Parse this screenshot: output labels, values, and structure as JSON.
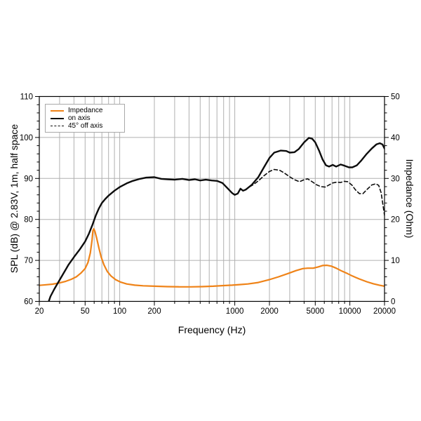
{
  "colors": {
    "background": "#ffffff",
    "grid": "#b0b0b0",
    "axis": "#000000",
    "impedance_orange": "#ef8318",
    "curve_black": "#0d0d0d",
    "legend_border": "#a9a9a9"
  },
  "axes": {
    "x": {
      "label": "Frequency (Hz)",
      "scale": "log",
      "range": [
        20,
        20000
      ],
      "major_ticks": [
        20,
        50,
        100,
        200,
        1000,
        2000,
        5000,
        10000,
        20000
      ],
      "major_tick_labels": [
        "20",
        "50",
        "100",
        "200",
        "1000",
        "2000",
        "5000",
        "10000",
        "20000"
      ],
      "minor_ticks": [
        30,
        40,
        60,
        70,
        80,
        90,
        300,
        400,
        500,
        600,
        700,
        800,
        900,
        3000,
        4000,
        6000,
        7000,
        8000,
        9000
      ],
      "grid_values": [
        30,
        40,
        50,
        60,
        70,
        80,
        90,
        100,
        200,
        300,
        400,
        500,
        600,
        700,
        800,
        900,
        1000,
        2000,
        3000,
        4000,
        5000,
        6000,
        7000,
        8000,
        9000,
        10000
      ]
    },
    "y_left": {
      "label": "SPL (dB) @ 2.83V, 1m, half space",
      "range": [
        60,
        110
      ],
      "major_ticks": [
        60,
        70,
        80,
        90,
        100,
        110
      ],
      "minor_step": 2,
      "grid_values": [
        70,
        80,
        90,
        100
      ]
    },
    "y_right": {
      "label": "Impedance (Ohm)",
      "range": [
        0,
        50
      ],
      "major_ticks": [
        0,
        10,
        20,
        30,
        40,
        50
      ],
      "minor_step": 2
    }
  },
  "legend": {
    "items": [
      {
        "label": "Impedance",
        "color": "#ef8318",
        "style": "solid"
      },
      {
        "label": "on axis",
        "color": "#0d0d0d",
        "style": "solid"
      },
      {
        "label": "45° off axis",
        "color": "#0d0d0d",
        "style": "dashed"
      }
    ]
  },
  "chart_data": {
    "type": "line",
    "title": "",
    "xlabel": "Frequency (Hz)",
    "ylabel_left": "SPL (dB) @ 2.83V, 1m, half space",
    "ylabel_right": "Impedance (Ohm)",
    "x_range": [
      20,
      20000
    ],
    "y_left_range": [
      60,
      110
    ],
    "y_right_range": [
      0,
      50
    ],
    "grid": true,
    "legend_position": "top-left",
    "series": [
      {
        "name": "Impedance",
        "axis": "right",
        "unit": "Ohm",
        "color": "#ef8318",
        "style": "solid",
        "points": [
          [
            20,
            3.9
          ],
          [
            23,
            4.05
          ],
          [
            26,
            4.2
          ],
          [
            30,
            4.5
          ],
          [
            34,
            4.9
          ],
          [
            38,
            5.4
          ],
          [
            42,
            6.0
          ],
          [
            46,
            6.9
          ],
          [
            50,
            8.0
          ],
          [
            53,
            9.5
          ],
          [
            55.5,
            11.8
          ],
          [
            57.5,
            15.0
          ],
          [
            58.5,
            17.2
          ],
          [
            59.5,
            17.7
          ],
          [
            61,
            17.0
          ],
          [
            63,
            15.5
          ],
          [
            66,
            13.0
          ],
          [
            69,
            10.8
          ],
          [
            73,
            8.9
          ],
          [
            78,
            7.3
          ],
          [
            84,
            6.2
          ],
          [
            92,
            5.3
          ],
          [
            102,
            4.7
          ],
          [
            115,
            4.25
          ],
          [
            135,
            3.95
          ],
          [
            160,
            3.8
          ],
          [
            200,
            3.7
          ],
          [
            260,
            3.6
          ],
          [
            330,
            3.55
          ],
          [
            420,
            3.55
          ],
          [
            520,
            3.6
          ],
          [
            650,
            3.7
          ],
          [
            800,
            3.85
          ],
          [
            950,
            3.95
          ],
          [
            1100,
            4.1
          ],
          [
            1300,
            4.25
          ],
          [
            1600,
            4.6
          ],
          [
            2000,
            5.3
          ],
          [
            2400,
            6.0
          ],
          [
            2900,
            6.8
          ],
          [
            3400,
            7.5
          ],
          [
            3900,
            8.0
          ],
          [
            4300,
            8.1
          ],
          [
            4800,
            8.1
          ],
          [
            5300,
            8.4
          ],
          [
            5800,
            8.75
          ],
          [
            6300,
            8.8
          ],
          [
            6900,
            8.6
          ],
          [
            7600,
            8.1
          ],
          [
            8500,
            7.4
          ],
          [
            9500,
            6.8
          ],
          [
            10500,
            6.2
          ],
          [
            12000,
            5.5
          ],
          [
            14000,
            4.8
          ],
          [
            16000,
            4.3
          ],
          [
            18000,
            3.95
          ],
          [
            20000,
            3.7
          ]
        ]
      },
      {
        "name": "on axis",
        "axis": "left",
        "unit": "dB",
        "color": "#0d0d0d",
        "style": "solid",
        "points": [
          [
            23.5,
            59.0
          ],
          [
            25,
            61.2
          ],
          [
            27,
            63.0
          ],
          [
            30,
            65.2
          ],
          [
            33,
            67.2
          ],
          [
            36,
            69.0
          ],
          [
            40,
            70.8
          ],
          [
            45,
            72.7
          ],
          [
            50,
            74.6
          ],
          [
            54,
            76.5
          ],
          [
            58,
            78.7
          ],
          [
            62,
            81.0
          ],
          [
            66,
            82.7
          ],
          [
            70,
            84.0
          ],
          [
            75,
            85.0
          ],
          [
            80,
            85.8
          ],
          [
            90,
            87.0
          ],
          [
            100,
            87.9
          ],
          [
            115,
            88.8
          ],
          [
            130,
            89.4
          ],
          [
            150,
            89.9
          ],
          [
            170,
            90.2
          ],
          [
            200,
            90.3
          ],
          [
            230,
            89.9
          ],
          [
            260,
            89.8
          ],
          [
            300,
            89.7
          ],
          [
            350,
            89.9
          ],
          [
            400,
            89.6
          ],
          [
            450,
            89.8
          ],
          [
            500,
            89.5
          ],
          [
            560,
            89.7
          ],
          [
            630,
            89.5
          ],
          [
            700,
            89.4
          ],
          [
            780,
            88.9
          ],
          [
            850,
            87.8
          ],
          [
            950,
            86.4
          ],
          [
            1000,
            86.0
          ],
          [
            1060,
            86.3
          ],
          [
            1120,
            87.5
          ],
          [
            1180,
            87.0
          ],
          [
            1250,
            87.3
          ],
          [
            1400,
            88.4
          ],
          [
            1600,
            90.3
          ],
          [
            1800,
            92.8
          ],
          [
            2000,
            95.0
          ],
          [
            2200,
            96.3
          ],
          [
            2500,
            96.8
          ],
          [
            2800,
            96.7
          ],
          [
            3000,
            96.3
          ],
          [
            3300,
            96.4
          ],
          [
            3600,
            97.2
          ],
          [
            4000,
            98.8
          ],
          [
            4400,
            99.9
          ],
          [
            4700,
            99.7
          ],
          [
            5000,
            98.8
          ],
          [
            5400,
            96.8
          ],
          [
            5800,
            94.6
          ],
          [
            6200,
            93.2
          ],
          [
            6600,
            92.9
          ],
          [
            7100,
            93.3
          ],
          [
            7600,
            92.9
          ],
          [
            8300,
            93.4
          ],
          [
            9000,
            93.1
          ],
          [
            9800,
            92.7
          ],
          [
            10500,
            92.7
          ],
          [
            11500,
            93.2
          ],
          [
            12500,
            94.3
          ],
          [
            14000,
            96.0
          ],
          [
            15500,
            97.3
          ],
          [
            17000,
            98.3
          ],
          [
            18200,
            98.6
          ],
          [
            19200,
            98.3
          ],
          [
            20000,
            97.3
          ]
        ]
      },
      {
        "name": "45° off axis",
        "axis": "left",
        "unit": "dB",
        "color": "#0d0d0d",
        "style": "dashed",
        "points": [
          [
            1350,
            88.0
          ],
          [
            1450,
            88.5
          ],
          [
            1600,
            89.4
          ],
          [
            1800,
            90.7
          ],
          [
            2000,
            91.7
          ],
          [
            2200,
            92.2
          ],
          [
            2450,
            92.0
          ],
          [
            2700,
            91.3
          ],
          [
            3000,
            90.4
          ],
          [
            3300,
            89.7
          ],
          [
            3650,
            89.2
          ],
          [
            4000,
            89.7
          ],
          [
            4300,
            89.9
          ],
          [
            4700,
            89.2
          ],
          [
            5100,
            88.5
          ],
          [
            5600,
            88.0
          ],
          [
            6100,
            87.9
          ],
          [
            6600,
            88.4
          ],
          [
            7100,
            88.9
          ],
          [
            7700,
            89.1
          ],
          [
            8300,
            89.0
          ],
          [
            8900,
            89.3
          ],
          [
            9600,
            89.2
          ],
          [
            10400,
            88.4
          ],
          [
            11200,
            87.2
          ],
          [
            12100,
            86.3
          ],
          [
            13000,
            86.3
          ],
          [
            14200,
            87.4
          ],
          [
            15500,
            88.4
          ],
          [
            16800,
            88.7
          ],
          [
            17800,
            88.3
          ],
          [
            18700,
            86.5
          ],
          [
            19400,
            83.5
          ],
          [
            20000,
            81.0
          ]
        ]
      }
    ]
  }
}
